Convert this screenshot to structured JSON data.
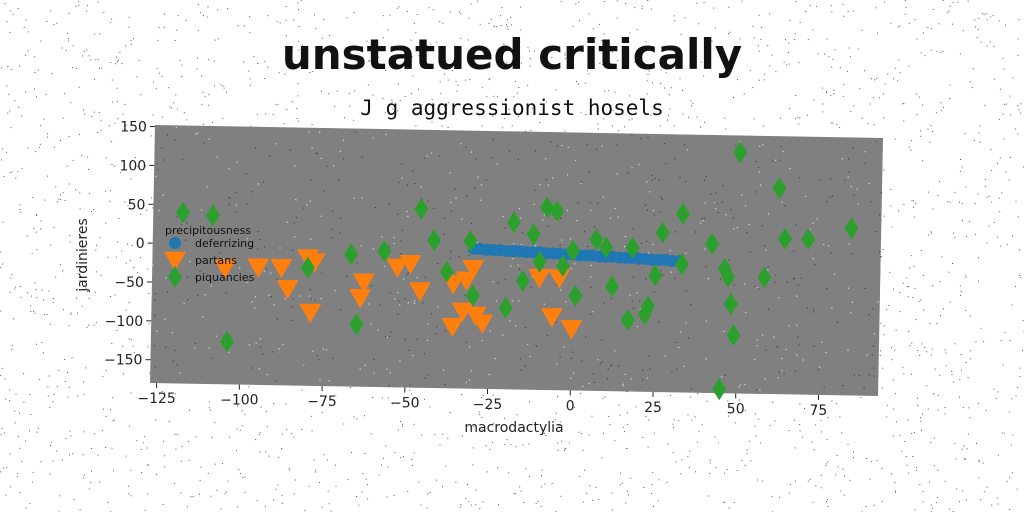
{
  "title": "unstatued critically",
  "subtitle": "J g aggressionist hosels",
  "colors": {
    "background": "#ffffff",
    "plot_bg": "#808080",
    "blue": "#1f77b4",
    "orange": "#ff7f0e",
    "green": "#2ca02c"
  },
  "chart_data": {
    "type": "scatter",
    "xlabel": "macrodactylia",
    "ylabel": "jardinieres",
    "xlim": [
      -127,
      93
    ],
    "ylim": [
      -180,
      152
    ],
    "xticks": [
      -125,
      -100,
      -75,
      -50,
      -25,
      0,
      25,
      50,
      75
    ],
    "yticks": [
      -150,
      -100,
      -50,
      0,
      50,
      100,
      150
    ],
    "grid": false,
    "legend": {
      "title": "precipitousness",
      "placement": "center-left"
    },
    "series": [
      {
        "name": "deferrizing",
        "marker": "circle",
        "color": "#1f77b4",
        "points": [
          [
            -30,
            0
          ],
          [
            -28,
            0
          ],
          [
            -26,
            -1
          ],
          [
            -24,
            -1
          ],
          [
            -22,
            -1
          ],
          [
            -20,
            -2
          ],
          [
            -18,
            -2
          ],
          [
            -16,
            -2
          ],
          [
            -14,
            -3
          ],
          [
            -12,
            -3
          ],
          [
            -10,
            -3
          ],
          [
            -8,
            -4
          ],
          [
            -6,
            -4
          ],
          [
            -4,
            -4
          ],
          [
            -2,
            -5
          ],
          [
            0,
            -5
          ],
          [
            2,
            -6
          ],
          [
            4,
            -6
          ],
          [
            6,
            -6
          ],
          [
            8,
            -7
          ],
          [
            10,
            -7
          ],
          [
            12,
            -7
          ],
          [
            14,
            -8
          ],
          [
            16,
            -8
          ],
          [
            18,
            -8
          ],
          [
            20,
            -9
          ],
          [
            22,
            -9
          ],
          [
            24,
            -10
          ],
          [
            26,
            -10
          ],
          [
            28,
            -10
          ],
          [
            30,
            -11
          ],
          [
            32,
            -11
          ]
        ]
      },
      {
        "name": "partans",
        "marker": "triangle-down",
        "color": "#ff7f0e",
        "points": [
          [
            -105,
            -30
          ],
          [
            -95,
            -28
          ],
          [
            -88,
            -28
          ],
          [
            -80,
            -15
          ],
          [
            -78,
            -20
          ],
          [
            -86,
            -55
          ],
          [
            -79,
            -85
          ],
          [
            -63,
            -45
          ],
          [
            -64,
            -65
          ],
          [
            -53,
            -25
          ],
          [
            -49,
            -20
          ],
          [
            -46,
            -55
          ],
          [
            -36,
            -45
          ],
          [
            -32,
            -40
          ],
          [
            -30,
            -25
          ],
          [
            -33,
            -80
          ],
          [
            -29,
            -85
          ],
          [
            -36,
            -100
          ],
          [
            -27,
            -95
          ],
          [
            -10,
            -35
          ],
          [
            -4,
            -35
          ],
          [
            -6,
            -85
          ],
          [
            0,
            -100
          ]
        ]
      },
      {
        "name": "piquancies",
        "marker": "diamond",
        "color": "#2ca02c",
        "points": [
          [
            -118,
            40
          ],
          [
            -109,
            37
          ],
          [
            -80,
            -28
          ],
          [
            -67,
            -10
          ],
          [
            -57,
            -5
          ],
          [
            -46,
            50
          ],
          [
            -42,
            10
          ],
          [
            -38,
            -30
          ],
          [
            -31,
            10
          ],
          [
            -30,
            -60
          ],
          [
            -20,
            -75
          ],
          [
            -18,
            35
          ],
          [
            -15,
            -40
          ],
          [
            -12,
            20
          ],
          [
            -10,
            -15
          ],
          [
            -8,
            55
          ],
          [
            -5,
            50
          ],
          [
            -3,
            -20
          ],
          [
            0,
            0
          ],
          [
            1,
            -58
          ],
          [
            7,
            15
          ],
          [
            10,
            5
          ],
          [
            12,
            -45
          ],
          [
            17,
            -88
          ],
          [
            18,
            5
          ],
          [
            22,
            -80
          ],
          [
            23,
            -70
          ],
          [
            25,
            -30
          ],
          [
            27,
            25
          ],
          [
            33,
            50
          ],
          [
            33,
            -15
          ],
          [
            42,
            12
          ],
          [
            46,
            -20
          ],
          [
            47,
            -30
          ],
          [
            48,
            -65
          ],
          [
            49,
            -105
          ],
          [
            50,
            130
          ],
          [
            58,
            -30
          ],
          [
            62,
            85
          ],
          [
            64,
            20
          ],
          [
            71,
            20
          ],
          [
            84,
            35
          ],
          [
            -104,
            -125
          ],
          [
            -65,
            -100
          ],
          [
            45,
            -175
          ]
        ]
      }
    ]
  }
}
